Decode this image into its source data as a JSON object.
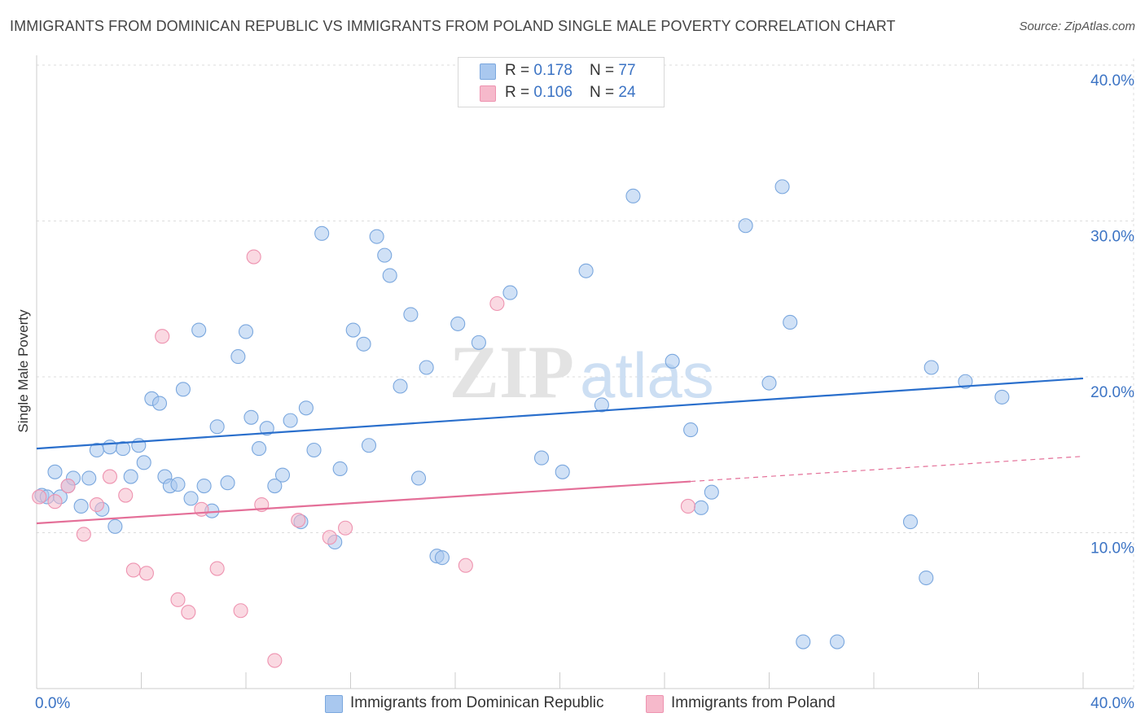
{
  "title": "IMMIGRANTS FROM DOMINICAN REPUBLIC VS IMMIGRANTS FROM POLAND SINGLE MALE POVERTY CORRELATION CHART",
  "source": "Source: ZipAtlas.com",
  "watermark": {
    "zip": "ZIP",
    "atlas": "atlas"
  },
  "stats": {
    "rows": [
      {
        "r_label": "R = ",
        "r_value": "0.178",
        "n_label": "N = ",
        "n_value": "77"
      },
      {
        "r_label": "R = ",
        "r_value": "0.106",
        "n_label": "N = ",
        "n_value": "24"
      }
    ]
  },
  "legend": {
    "items": [
      {
        "label": "Immigrants from Dominican Republic"
      },
      {
        "label": "Immigrants from Poland"
      }
    ]
  },
  "colors": {
    "blue_fill": "#a9c8ef",
    "blue_stroke": "#7aa7de",
    "blue_line": "#2a6fcc",
    "pink_fill": "#f6b9cb",
    "pink_stroke": "#ee93b0",
    "pink_line": "#e46f98",
    "tick_text": "#3b73c4",
    "grid": "#dcdcdc"
  },
  "chart_data": {
    "type": "scatter",
    "title": "IMMIGRANTS FROM DOMINICAN REPUBLIC VS IMMIGRANTS FROM POLAND SINGLE MALE POVERTY CORRELATION CHART",
    "xlabel": "",
    "ylabel": "Single Male Poverty",
    "xlim": [
      0,
      40
    ],
    "ylim": [
      0,
      40
    ],
    "x_ticks": [
      "0.0%",
      "40.0%"
    ],
    "y_ticks": [
      {
        "value": 10,
        "label": "10.0%"
      },
      {
        "value": 20,
        "label": "20.0%"
      },
      {
        "value": 30,
        "label": "30.0%"
      },
      {
        "value": 40,
        "label": "40.0%"
      }
    ],
    "grid": true,
    "legend_position": "bottom",
    "series": [
      {
        "name": "Immigrants from Dominican Republic",
        "color": "#a9c8ef",
        "r": "0.178",
        "n": "77",
        "trend": {
          "x": [
            0,
            40
          ],
          "y": [
            15.4,
            19.9
          ],
          "dashed_from": null
        },
        "points": [
          [
            0.2,
            12.4
          ],
          [
            0.4,
            12.3
          ],
          [
            0.7,
            13.9
          ],
          [
            0.9,
            12.3
          ],
          [
            1.2,
            13.0
          ],
          [
            1.4,
            13.5
          ],
          [
            1.7,
            11.7
          ],
          [
            2.0,
            13.5
          ],
          [
            2.3,
            15.3
          ],
          [
            2.5,
            11.5
          ],
          [
            2.8,
            15.5
          ],
          [
            3.0,
            10.4
          ],
          [
            3.3,
            15.4
          ],
          [
            3.6,
            13.6
          ],
          [
            3.9,
            15.6
          ],
          [
            4.1,
            14.5
          ],
          [
            4.4,
            18.6
          ],
          [
            4.7,
            18.3
          ],
          [
            4.9,
            13.6
          ],
          [
            5.1,
            13.0
          ],
          [
            5.4,
            13.1
          ],
          [
            5.6,
            19.2
          ],
          [
            5.9,
            12.2
          ],
          [
            6.2,
            23.0
          ],
          [
            6.4,
            13.0
          ],
          [
            6.7,
            11.4
          ],
          [
            6.9,
            16.8
          ],
          [
            7.3,
            13.2
          ],
          [
            7.7,
            21.3
          ],
          [
            8.0,
            22.9
          ],
          [
            8.2,
            17.4
          ],
          [
            8.5,
            15.4
          ],
          [
            8.8,
            16.7
          ],
          [
            9.1,
            13.0
          ],
          [
            9.4,
            13.7
          ],
          [
            9.7,
            17.2
          ],
          [
            10.1,
            10.7
          ],
          [
            10.3,
            18.0
          ],
          [
            10.6,
            15.3
          ],
          [
            10.9,
            29.2
          ],
          [
            11.4,
            9.4
          ],
          [
            11.6,
            14.1
          ],
          [
            12.1,
            23.0
          ],
          [
            12.5,
            22.1
          ],
          [
            12.7,
            15.6
          ],
          [
            13.0,
            29.0
          ],
          [
            13.3,
            27.8
          ],
          [
            13.5,
            26.5
          ],
          [
            13.9,
            19.4
          ],
          [
            14.3,
            24.0
          ],
          [
            14.6,
            13.5
          ],
          [
            14.9,
            20.6
          ],
          [
            15.3,
            8.5
          ],
          [
            15.5,
            8.4
          ],
          [
            16.1,
            23.4
          ],
          [
            16.9,
            22.2
          ],
          [
            18.1,
            25.4
          ],
          [
            19.3,
            14.8
          ],
          [
            20.1,
            13.9
          ],
          [
            21.0,
            26.8
          ],
          [
            21.6,
            18.2
          ],
          [
            22.8,
            31.6
          ],
          [
            24.3,
            21.0
          ],
          [
            25.0,
            16.6
          ],
          [
            25.4,
            11.6
          ],
          [
            25.8,
            12.6
          ],
          [
            27.1,
            29.7
          ],
          [
            28.0,
            19.6
          ],
          [
            28.5,
            32.2
          ],
          [
            28.8,
            23.5
          ],
          [
            29.3,
            3.0
          ],
          [
            30.6,
            3.0
          ],
          [
            33.4,
            10.7
          ],
          [
            34.0,
            7.1
          ],
          [
            34.2,
            20.6
          ],
          [
            35.5,
            19.7
          ],
          [
            36.9,
            18.7
          ]
        ]
      },
      {
        "name": "Immigrants from Poland",
        "color": "#f6b9cb",
        "r": "0.106",
        "n": "24",
        "trend": {
          "x": [
            0,
            40
          ],
          "y": [
            10.6,
            14.9
          ],
          "dashed_from": 25.0
        },
        "points": [
          [
            0.1,
            12.3
          ],
          [
            0.7,
            12.0
          ],
          [
            1.2,
            13.0
          ],
          [
            1.8,
            9.9
          ],
          [
            2.3,
            11.8
          ],
          [
            2.8,
            13.6
          ],
          [
            3.4,
            12.4
          ],
          [
            3.7,
            7.6
          ],
          [
            4.2,
            7.4
          ],
          [
            4.8,
            22.6
          ],
          [
            5.4,
            5.7
          ],
          [
            5.8,
            4.9
          ],
          [
            6.3,
            11.5
          ],
          [
            6.9,
            7.7
          ],
          [
            7.8,
            5.0
          ],
          [
            8.3,
            27.7
          ],
          [
            8.6,
            11.8
          ],
          [
            9.1,
            1.8
          ],
          [
            10.0,
            10.8
          ],
          [
            11.2,
            9.7
          ],
          [
            11.8,
            10.3
          ],
          [
            16.4,
            7.9
          ],
          [
            17.6,
            24.7
          ],
          [
            24.9,
            11.7
          ]
        ]
      }
    ]
  }
}
